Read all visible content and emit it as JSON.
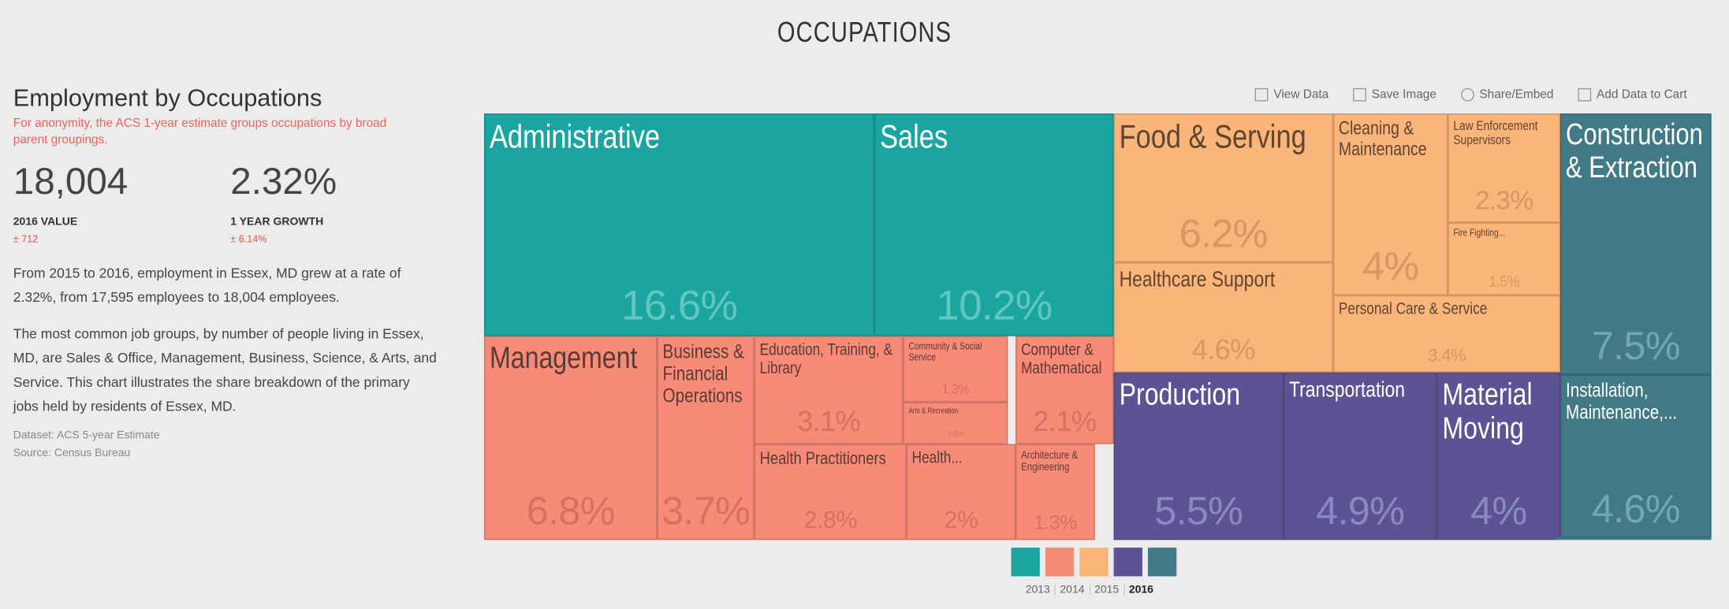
{
  "header": {
    "title": "OCCUPATIONS"
  },
  "sidebar": {
    "title": "Employment by Occupations",
    "note": "For anonymity, the ACS 1-year estimate groups occupations by broad parent groupings.",
    "stats": [
      {
        "value": "18,004",
        "label": "2016 VALUE",
        "moe": "± 712"
      },
      {
        "value": "2.32%",
        "label": "1 YEAR GROWTH",
        "moe": "± 6.14%"
      }
    ],
    "paragraphs": [
      "From 2015 to 2016, employment in Essex, MD grew at a rate of 2.32%, from 17,595 employees to 18,004 employees.",
      "The most common job groups, by number of people living in Essex, MD, are Sales & Office, Management, Business, Science, & Arts, and Service. This chart illustrates the share breakdown of the primary jobs held by residents of Essex, MD."
    ],
    "dataset": "Dataset: ACS 5-year Estimate",
    "source": "Source: Census Bureau"
  },
  "toolbar": [
    "View Data",
    "Save Image",
    "Share/Embed",
    "Add Data to Cart"
  ],
  "treemap": [
    {
      "label": "Administrative",
      "value": "16.6%"
    },
    {
      "label": "Sales",
      "value": "10.2%"
    },
    {
      "label": "Management",
      "value": "6.8%"
    },
    {
      "label": "Business & Financial Operations",
      "value": "3.7%"
    },
    {
      "label": "Education, Training, & Library",
      "value": "3.1%"
    },
    {
      "label": "Health Practitioners",
      "value": "2.8%"
    },
    {
      "label": "Community & Social Service",
      "value": "1.3%"
    },
    {
      "label": "Arts & Recreation",
      "value": "0.8%"
    },
    {
      "label": "Health...",
      "value": "2%"
    },
    {
      "label": "Computer & Mathematical",
      "value": "2.1%"
    },
    {
      "label": "Architecture & Engineering",
      "value": "1.3%"
    },
    {
      "label": "Food & Serving",
      "value": "6.2%"
    },
    {
      "label": "Healthcare Support",
      "value": "4.6%"
    },
    {
      "label": "Cleaning & Maintenance",
      "value": "4%"
    },
    {
      "label": "Law Enforcement Supervisors",
      "value": "2.3%"
    },
    {
      "label": "Fire Fighting...",
      "value": "1.5%"
    },
    {
      "label": "Personal Care & Service",
      "value": "3.4%"
    },
    {
      "label": "Construction & Extraction",
      "value": "7.5%"
    },
    {
      "label": "Installation, Maintenance,...",
      "value": "4.6%"
    },
    {
      "label": "Production",
      "value": "5.5%"
    },
    {
      "label": "Transportation",
      "value": "4.9%"
    },
    {
      "label": "Material Moving",
      "value": "4%"
    }
  ],
  "years": [
    "2013",
    "2014",
    "2015",
    "2016"
  ]
}
